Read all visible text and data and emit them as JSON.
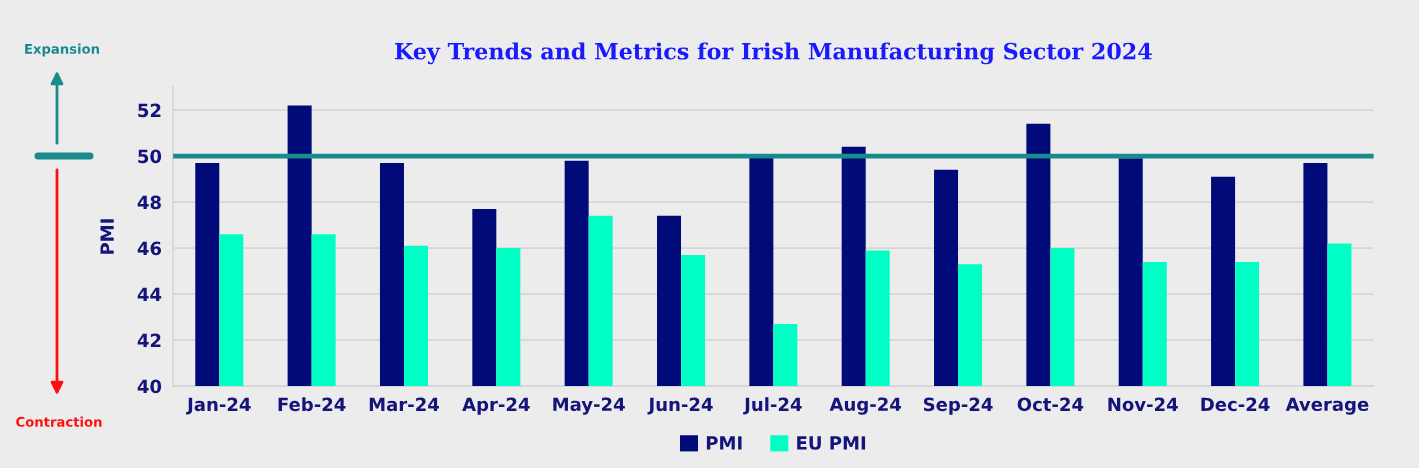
{
  "chart_data": {
    "type": "bar",
    "title": "Key Trends and Metrics for Irish Manufacturing Sector 2024",
    "ylabel": "PMI",
    "categories": [
      "Jan-24",
      "Feb-24",
      "Mar-24",
      "Apr-24",
      "May-24",
      "Jun-24",
      "Jul-24",
      "Aug-24",
      "Sep-24",
      "Oct-24",
      "Nov-24",
      "Dec-24",
      "Average"
    ],
    "series": [
      {
        "name": "PMI",
        "color": "#000a78",
        "values": [
          49.7,
          52.2,
          49.7,
          47.7,
          49.8,
          47.4,
          50.0,
          50.4,
          49.4,
          51.4,
          49.9,
          49.1,
          49.7
        ]
      },
      {
        "name": "EU PMI",
        "color": "#00ffc5",
        "values": [
          46.6,
          46.6,
          46.1,
          46.0,
          47.4,
          45.7,
          42.7,
          45.9,
          45.3,
          46.0,
          45.4,
          45.4,
          46.2
        ]
      }
    ],
    "ylim": [
      40,
      53
    ],
    "yticks": [
      40,
      42,
      44,
      46,
      48,
      50,
      52
    ],
    "grid": "y",
    "legend": "bottom",
    "ref_lines": [
      {
        "axis": "y",
        "value": 50,
        "color": "#1b8a8c"
      }
    ],
    "annotations": [
      "Expansion",
      "Contraction"
    ]
  }
}
